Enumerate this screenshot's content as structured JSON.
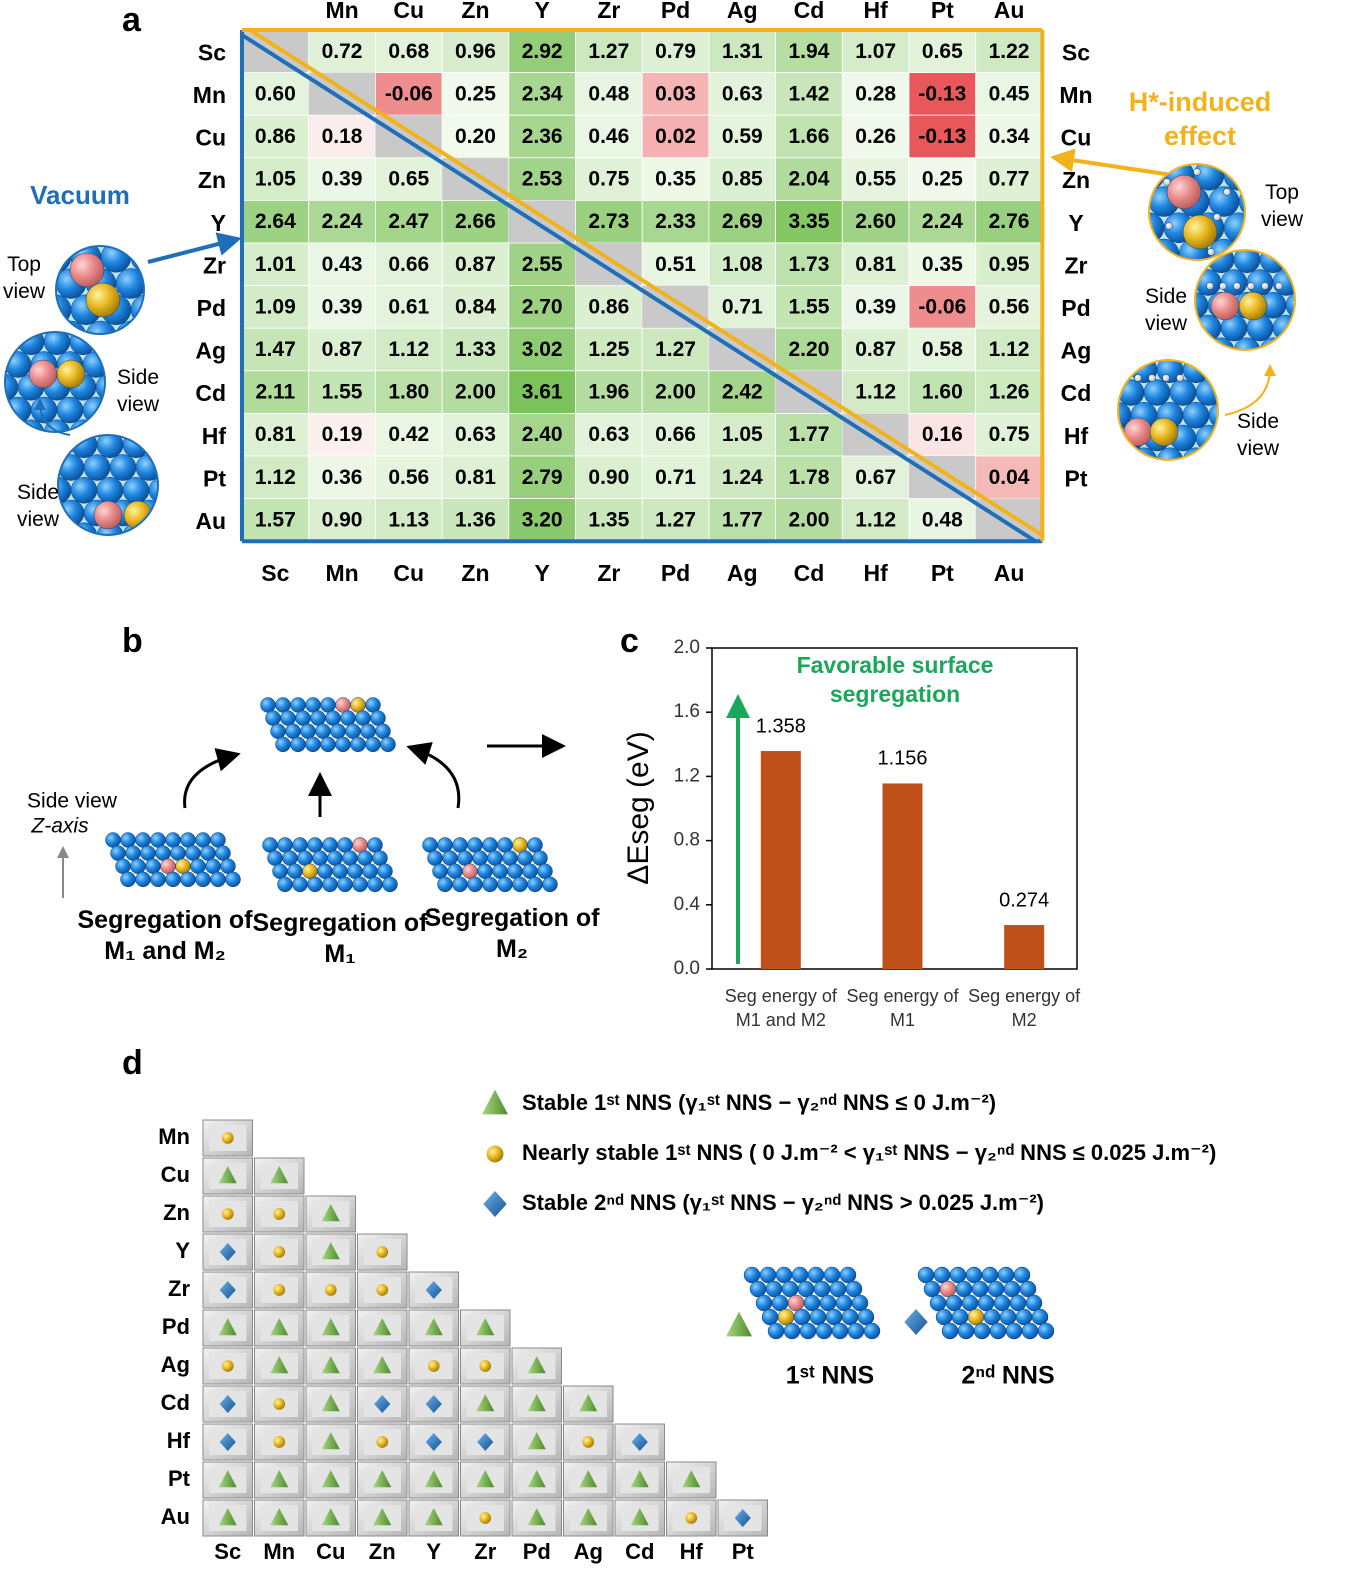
{
  "panel_labels": [
    "a",
    "b",
    "c",
    "d"
  ],
  "chart_data": [
    {
      "type": "heatmap",
      "rows": [
        "Sc",
        "Mn",
        "Cu",
        "Zn",
        "Y",
        "Zr",
        "Pd",
        "Ag",
        "Cd",
        "Hf",
        "Pt",
        "Au"
      ],
      "columns": [
        "Sc",
        "Mn",
        "Cu",
        "Zn",
        "Y",
        "Zr",
        "Pd",
        "Ag",
        "Cd",
        "Hf",
        "Pt",
        "Au"
      ],
      "values": [
        [
          null,
          0.72,
          0.68,
          0.96,
          2.92,
          1.27,
          0.79,
          1.31,
          1.94,
          1.07,
          0.65,
          1.22
        ],
        [
          0.6,
          null,
          -0.06,
          0.25,
          2.34,
          0.48,
          0.03,
          0.63,
          1.42,
          0.28,
          -0.13,
          0.45
        ],
        [
          0.86,
          0.18,
          null,
          0.2,
          2.36,
          0.46,
          0.02,
          0.59,
          1.66,
          0.26,
          -0.13,
          0.34
        ],
        [
          1.05,
          0.39,
          0.65,
          null,
          2.53,
          0.75,
          0.35,
          0.85,
          2.04,
          0.55,
          0.25,
          0.77
        ],
        [
          2.64,
          2.24,
          2.47,
          2.66,
          null,
          2.73,
          2.33,
          2.69,
          3.35,
          2.6,
          2.24,
          2.76
        ],
        [
          1.01,
          0.43,
          0.66,
          0.87,
          2.55,
          null,
          0.51,
          1.08,
          1.73,
          0.81,
          0.35,
          0.95
        ],
        [
          1.09,
          0.39,
          0.61,
          0.84,
          2.7,
          0.86,
          null,
          0.71,
          1.55,
          0.39,
          -0.06,
          0.56
        ],
        [
          1.47,
          0.87,
          1.12,
          1.33,
          3.02,
          1.25,
          1.27,
          null,
          2.2,
          0.87,
          0.58,
          1.12
        ],
        [
          2.11,
          1.55,
          1.8,
          2.0,
          3.61,
          1.96,
          2.0,
          2.42,
          null,
          1.12,
          1.6,
          1.26
        ],
        [
          0.81,
          0.19,
          0.42,
          0.63,
          2.4,
          0.63,
          0.66,
          1.05,
          1.77,
          null,
          0.16,
          0.75
        ],
        [
          1.12,
          0.36,
          0.56,
          0.81,
          2.79,
          0.9,
          0.71,
          1.24,
          1.78,
          0.67,
          null,
          0.04
        ],
        [
          1.57,
          0.9,
          1.13,
          1.36,
          3.2,
          1.35,
          1.27,
          1.77,
          2.0,
          1.12,
          0.48,
          null
        ]
      ],
      "value_labels": [
        [
          null,
          "0.72",
          "0.68",
          "0.96",
          "2.92",
          "1.27",
          "0.79",
          "1.31",
          "1.94",
          "1.07",
          "0.65",
          "1.22"
        ],
        [
          "0.60",
          null,
          "-0.06",
          "0.25",
          "2.34",
          "0.48",
          "0.03",
          "0.63",
          "1.42",
          "0.28",
          "-0.13",
          "0.45"
        ],
        [
          "0.86",
          "0.18",
          null,
          "0.20",
          "2.36",
          "0.46",
          "0.02",
          "0.59",
          "1.66",
          "0.26",
          "-0.13",
          "0.34"
        ],
        [
          "1.05",
          "0.39",
          "0.65",
          null,
          "2.53",
          "0.75",
          "0.35",
          "0.85",
          "2.04",
          "0.55",
          "0.25",
          "0.77"
        ],
        [
          "2.64",
          "2.24",
          "2.47",
          "2.66",
          null,
          "2.73",
          "2.33",
          "2.69",
          "3.35",
          "2.60",
          "2.24",
          "2.76"
        ],
        [
          "1.01",
          "0.43",
          "0.66",
          "0.87",
          "2.55",
          null,
          "0.51",
          "1.08",
          "1.73",
          "0.81",
          "0.35",
          "0.95"
        ],
        [
          "1.09",
          "0.39",
          "0.61",
          "0.84",
          "2.70",
          "0.86",
          null,
          "0.71",
          "1.55",
          "0.39",
          "-0.06",
          "0.56"
        ],
        [
          "1.47",
          "0.87",
          "1.12",
          "1.33",
          "3.02",
          "1.25",
          "1.27",
          null,
          "2.20",
          "0.87",
          "0.58",
          "1.12"
        ],
        [
          "2.11",
          "1.55",
          "1.80",
          "2.00",
          "3.61",
          "1.96",
          "2.00",
          "2.42",
          null,
          "1.12",
          "1.60",
          "1.26"
        ],
        [
          "0.81",
          "0.19",
          "0.42",
          "0.63",
          "2.40",
          "0.63",
          "0.66",
          "1.05",
          "1.77",
          null,
          "0.16",
          "0.75"
        ],
        [
          "1.12",
          "0.36",
          "0.56",
          "0.81",
          "2.79",
          "0.90",
          "0.71",
          "1.24",
          "1.78",
          "0.67",
          null,
          "0.04"
        ],
        [
          "1.57",
          "0.90",
          "1.13",
          "1.36",
          "3.20",
          "1.35",
          "1.27",
          "1.77",
          "2.00",
          "1.12",
          "0.48",
          null
        ]
      ],
      "diagonal_color": "#c9c9c9",
      "lower_label": "Vacuum",
      "lower_color": "#1f6fb8",
      "upper_label": "H*-induced effect",
      "upper_color": "#f2b21a"
    },
    {
      "type": "bar",
      "ylabel": "ΔEseg (eV)",
      "categories": [
        "Seg energy of M1 and M2",
        "Seg energy of M1",
        "Seg energy of M2"
      ],
      "values": [
        1.358,
        1.156,
        0.274
      ],
      "color": "#c0501a",
      "ylim": [
        0,
        2
      ],
      "yticks": [
        {
          "value": 0,
          "label": "0.0"
        },
        {
          "value": 0.4,
          "label": "0.4"
        },
        {
          "value": 0.8,
          "label": "0.8"
        },
        {
          "value": 1.2,
          "label": "1.2"
        },
        {
          "value": 1.6,
          "label": "1.6"
        },
        {
          "value": 2,
          "label": "2.0"
        }
      ],
      "annotation": "Favorable surface segregation",
      "annotation_color": "#1aa75a"
    }
  ],
  "views_a": {
    "left": [
      "Top view",
      "Side view",
      "Side view"
    ],
    "right": [
      "Top view",
      "Side view",
      "Side view"
    ]
  },
  "panel_b": {
    "axis_note": [
      "Side view",
      "Z-axis"
    ],
    "labels": [
      "Segregation of M₁ and M₂",
      "Segregation of M₁",
      "Segregation of M₂"
    ]
  },
  "stability": {
    "rows": [
      "Mn",
      "Cu",
      "Zn",
      "Y",
      "Zr",
      "Pd",
      "Ag",
      "Cd",
      "Hf",
      "Pt",
      "Au"
    ],
    "columns": [
      "Sc",
      "Mn",
      "Cu",
      "Zn",
      "Y",
      "Zr",
      "Pd",
      "Ag",
      "Cd",
      "Hf",
      "Pt"
    ],
    "cells": [
      [
        "S"
      ],
      [
        "T",
        "T"
      ],
      [
        "S",
        "S",
        "T"
      ],
      [
        "D",
        "S",
        "T",
        "S"
      ],
      [
        "D",
        "S",
        "S",
        "S",
        "D"
      ],
      [
        "T",
        "T",
        "T",
        "T",
        "T",
        "T"
      ],
      [
        "S",
        "T",
        "T",
        "T",
        "S",
        "S",
        "T"
      ],
      [
        "D",
        "S",
        "T",
        "D",
        "D",
        "T",
        "T",
        "T"
      ],
      [
        "D",
        "S",
        "T",
        "S",
        "D",
        "D",
        "T",
        "S",
        "D"
      ],
      [
        "T",
        "T",
        "T",
        "T",
        "T",
        "T",
        "T",
        "T",
        "T",
        "T"
      ],
      [
        "T",
        "T",
        "T",
        "T",
        "T",
        "S",
        "T",
        "T",
        "T",
        "S",
        "D"
      ]
    ],
    "legend": [
      {
        "symbol": "T",
        "text": "Stable 1ˢᵗ NNS (γ₁ˢᵗ NNS − γ₂ⁿᵈ NNS ≤ 0 J.m⁻²)"
      },
      {
        "symbol": "S",
        "text": "Nearly stable 1ˢᵗ NNS ( 0 J.m⁻² < γ₁ˢᵗ NNS − γ₂ⁿᵈ NNS ≤ 0.025 J.m⁻²)"
      },
      {
        "symbol": "D",
        "text": "Stable 2ⁿᵈ NNS (γ₁ˢᵗ NNS − γ₂ⁿᵈ NNS > 0.025 J.m⁻²)"
      }
    ],
    "nns_labels": [
      "1ˢᵗ NNS",
      "2ⁿᵈ NNS"
    ]
  }
}
